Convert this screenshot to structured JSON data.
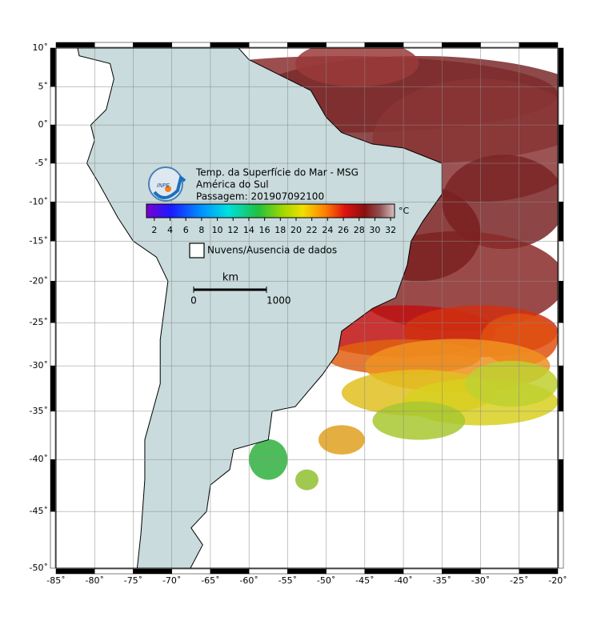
{
  "header": {
    "title_lines": [
      "Temp. da Superfície do Mar - MSG",
      "América do Sul",
      "Passagem: 201907092100"
    ],
    "logo_text": "INPE"
  },
  "colorbar": {
    "unit": "°C",
    "lim": [
      1,
      32.5
    ],
    "ticks": [
      2,
      4,
      6,
      8,
      10,
      12,
      14,
      16,
      18,
      20,
      22,
      24,
      26,
      28,
      30,
      32
    ]
  },
  "legend": {
    "no_data": "Nuvens/Ausencia de dados"
  },
  "scale_bar": {
    "title": "km",
    "ticks": [
      0,
      1000
    ]
  },
  "map": {
    "xlim": [
      -85,
      -20
    ],
    "ylim": [
      -50,
      10
    ],
    "grid": true,
    "xticks": [
      {
        "value": -85,
        "label": "-85˚"
      },
      {
        "value": -80,
        "label": "-80˚"
      },
      {
        "value": -75,
        "label": "-75˚"
      },
      {
        "value": -70,
        "label": "-70˚"
      },
      {
        "value": -65,
        "label": "-65˚"
      },
      {
        "value": -60,
        "label": "-60˚"
      },
      {
        "value": -55,
        "label": "-55˚"
      },
      {
        "value": -50,
        "label": "-50˚"
      },
      {
        "value": -45,
        "label": "-45˚"
      },
      {
        "value": -40,
        "label": "-40˚"
      },
      {
        "value": -35,
        "label": "-35˚"
      },
      {
        "value": -30,
        "label": "-30˚"
      },
      {
        "value": -25,
        "label": "-25˚"
      },
      {
        "value": -20,
        "label": "-20˚"
      }
    ],
    "yticks": [
      {
        "value": 10,
        "label": "10˚"
      },
      {
        "value": 5,
        "label": "5˚"
      },
      {
        "value": 0,
        "label": "0˚"
      },
      {
        "value": -5,
        "label": "-5˚"
      },
      {
        "value": -10,
        "label": "-10˚"
      },
      {
        "value": -15,
        "label": "-15˚"
      },
      {
        "value": -20,
        "label": "-20˚"
      },
      {
        "value": -25,
        "label": "-25˚"
      },
      {
        "value": -30,
        "label": "-30˚"
      },
      {
        "value": -35,
        "label": "-35˚"
      },
      {
        "value": -40,
        "label": "-40˚"
      },
      {
        "value": -45,
        "label": "-45˚"
      },
      {
        "value": -50,
        "label": "-50˚"
      }
    ]
  }
}
